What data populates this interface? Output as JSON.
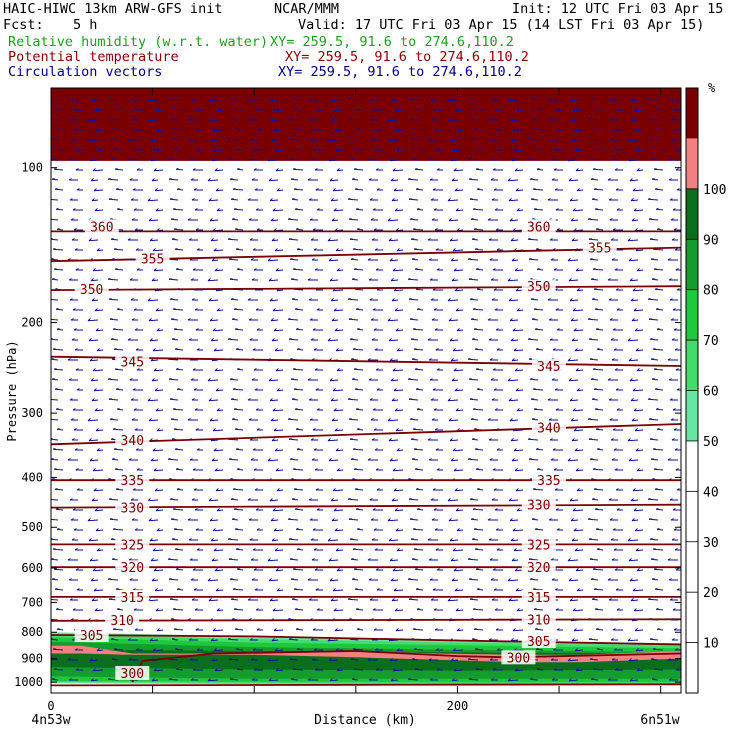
{
  "header": {
    "model": "HAIC-HIWC 13km ARW-GFS init",
    "org": "NCAR/MMM",
    "init": "Init: 12 UTC Fri 03 Apr 15",
    "fcst_label": "Fcst:",
    "fcst_value": "5 h",
    "valid": "Valid: 17 UTC Fri 03 Apr 15 (14 LST Fri 03 Apr 15)",
    "fields": [
      {
        "name": "Relative humidity (w.r.t. water)",
        "xy": "XY= 259.5, 91.6 to 274.6,110.2",
        "color": "#1e9e1e"
      },
      {
        "name": "Potential temperature",
        "xy": "XY= 259.5, 91.6 to 274.6,110.2",
        "color": "#8b0000"
      },
      {
        "name": "Circulation vectors",
        "xy": "XY= 259.5, 91.6 to 274.6,110.2",
        "color": "#00008b"
      }
    ]
  },
  "chart_data": {
    "type": "cross-section",
    "ylabel": "Pressure (hPa)",
    "xlabel": "Distance (km)",
    "xlim": [
      0,
      310
    ],
    "ylim": [
      1050,
      70
    ],
    "y_log": true,
    "x_ticks": [
      0,
      200
    ],
    "y_ticks": [
      100,
      200,
      300,
      400,
      500,
      600,
      700,
      800,
      900,
      1000
    ],
    "x_start_label": "4n53w",
    "x_end_label": "6n51w",
    "colorbar": {
      "unit": "%",
      "ticks": [
        10,
        20,
        30,
        40,
        50,
        60,
        70,
        80,
        90,
        100
      ],
      "bands": [
        {
          "from": 50,
          "to": 60,
          "color": "#66e8a0"
        },
        {
          "from": 60,
          "to": 70,
          "color": "#42dc6a"
        },
        {
          "from": 70,
          "to": 80,
          "color": "#1ec83c"
        },
        {
          "from": 80,
          "to": 90,
          "color": "#149c2c"
        },
        {
          "from": 90,
          "to": 100,
          "color": "#0b6e1c"
        },
        {
          "from": 100,
          "to": 110,
          "color": "#f28080"
        },
        {
          "from": 110,
          "to": 120,
          "color": "#7a0000"
        }
      ]
    },
    "theta_contours": [
      {
        "value": 360,
        "x": [
          0,
          310
        ],
        "p": [
          133,
          133
        ]
      },
      {
        "value": 355,
        "x": [
          0,
          310
        ],
        "p": [
          152,
          143
        ]
      },
      {
        "value": 350,
        "x": [
          0,
          310
        ],
        "p": [
          173,
          170
        ]
      },
      {
        "value": 345,
        "x": [
          0,
          310
        ],
        "p": [
          233,
          243
        ]
      },
      {
        "value": 340,
        "x": [
          0,
          310
        ],
        "p": [
          345,
          315
        ]
      },
      {
        "value": 335,
        "x": [
          0,
          310
        ],
        "p": [
          405,
          405
        ]
      },
      {
        "value": 330,
        "x": [
          0,
          310
        ],
        "p": [
          458,
          452
        ]
      },
      {
        "value": 325,
        "x": [
          0,
          310
        ],
        "p": [
          540,
          540
        ]
      },
      {
        "value": 320,
        "x": [
          0,
          310
        ],
        "p": [
          598,
          598
        ]
      },
      {
        "value": 315,
        "x": [
          0,
          310
        ],
        "p": [
          683,
          683
        ]
      },
      {
        "value": 310,
        "x": [
          0,
          310
        ],
        "p": [
          760,
          755
        ]
      },
      {
        "value": 305,
        "x": [
          0,
          100,
          200,
          310
        ],
        "p": [
          810,
          815,
          830,
          845
        ]
      },
      {
        "value": 300,
        "x": [
          40,
          45,
          80,
          150,
          200,
          225,
          310
        ],
        "p": [
          1000,
          910,
          880,
          870,
          890,
          895,
          880
        ]
      },
      {
        "value": 300,
        "x": [
          0,
          150,
          310
        ],
        "p": [
          1015,
          1012,
          1010
        ]
      }
    ],
    "theta_labels": [
      {
        "value": "360",
        "x": 25,
        "p": 130
      },
      {
        "value": "360",
        "x": 240,
        "p": 130
      },
      {
        "value": "355",
        "x": 50,
        "p": 150
      },
      {
        "value": "355",
        "x": 270,
        "p": 143
      },
      {
        "value": "350",
        "x": 20,
        "p": 172
      },
      {
        "value": "350",
        "x": 240,
        "p": 170
      },
      {
        "value": "345",
        "x": 40,
        "p": 238
      },
      {
        "value": "345",
        "x": 245,
        "p": 243
      },
      {
        "value": "340",
        "x": 40,
        "p": 338
      },
      {
        "value": "340",
        "x": 245,
        "p": 320
      },
      {
        "value": "335",
        "x": 40,
        "p": 405
      },
      {
        "value": "335",
        "x": 245,
        "p": 405
      },
      {
        "value": "330",
        "x": 40,
        "p": 458
      },
      {
        "value": "330",
        "x": 240,
        "p": 452
      },
      {
        "value": "325",
        "x": 40,
        "p": 540
      },
      {
        "value": "325",
        "x": 240,
        "p": 540
      },
      {
        "value": "320",
        "x": 40,
        "p": 598
      },
      {
        "value": "320",
        "x": 240,
        "p": 598
      },
      {
        "value": "315",
        "x": 40,
        "p": 683
      },
      {
        "value": "315",
        "x": 240,
        "p": 683
      },
      {
        "value": "310",
        "x": 35,
        "p": 758
      },
      {
        "value": "310",
        "x": 240,
        "p": 755
      },
      {
        "value": "305",
        "x": 20,
        "p": 810
      },
      {
        "value": "305",
        "x": 240,
        "p": 832
      },
      {
        "value": "300",
        "x": 40,
        "p": 960
      },
      {
        "value": "300",
        "x": 230,
        "p": 895
      }
    ],
    "rh_layers": [
      {
        "rh": 50,
        "x": [
          0,
          100,
          200,
          310
        ],
        "p_top": [
          800,
          815,
          830,
          840
        ],
        "p_bot": [
          1005,
          1010,
          1012,
          1012
        ]
      },
      {
        "rh": 60,
        "x": [
          0,
          100,
          200,
          310
        ],
        "p_top": [
          808,
          825,
          838,
          850
        ],
        "p_bot": [
          1000,
          1005,
          1008,
          1008
        ]
      },
      {
        "rh": 70,
        "x": [
          0,
          100,
          200,
          310
        ],
        "p_top": [
          818,
          838,
          848,
          860
        ],
        "p_bot": [
          995,
          998,
          1000,
          1000
        ]
      },
      {
        "rh": 80,
        "x": [
          0,
          100,
          200,
          310
        ],
        "p_top": [
          835,
          855,
          865,
          875
        ],
        "p_bot": [
          975,
          985,
          985,
          985
        ]
      },
      {
        "rh": 90,
        "x": [
          0,
          100,
          200,
          310
        ],
        "p_top": [
          865,
          870,
          875,
          880
        ],
        "p_bot": [
          935,
          945,
          950,
          945
        ]
      },
      {
        "rh": 100,
        "x": [
          0,
          15,
          40,
          100,
          150,
          190,
          230,
          260,
          310
        ],
        "p_top": [
          850,
          850,
          880,
          880,
          870,
          880,
          885,
          885,
          870
        ],
        "p_bot": [
          880,
          880,
          885,
          885,
          895,
          905,
          915,
          915,
          900
        ]
      },
      {
        "rh": 110,
        "x": [
          0,
          310
        ],
        "p_top": [
          70,
          70
        ],
        "p_bot": [
          97,
          97
        ]
      }
    ]
  }
}
